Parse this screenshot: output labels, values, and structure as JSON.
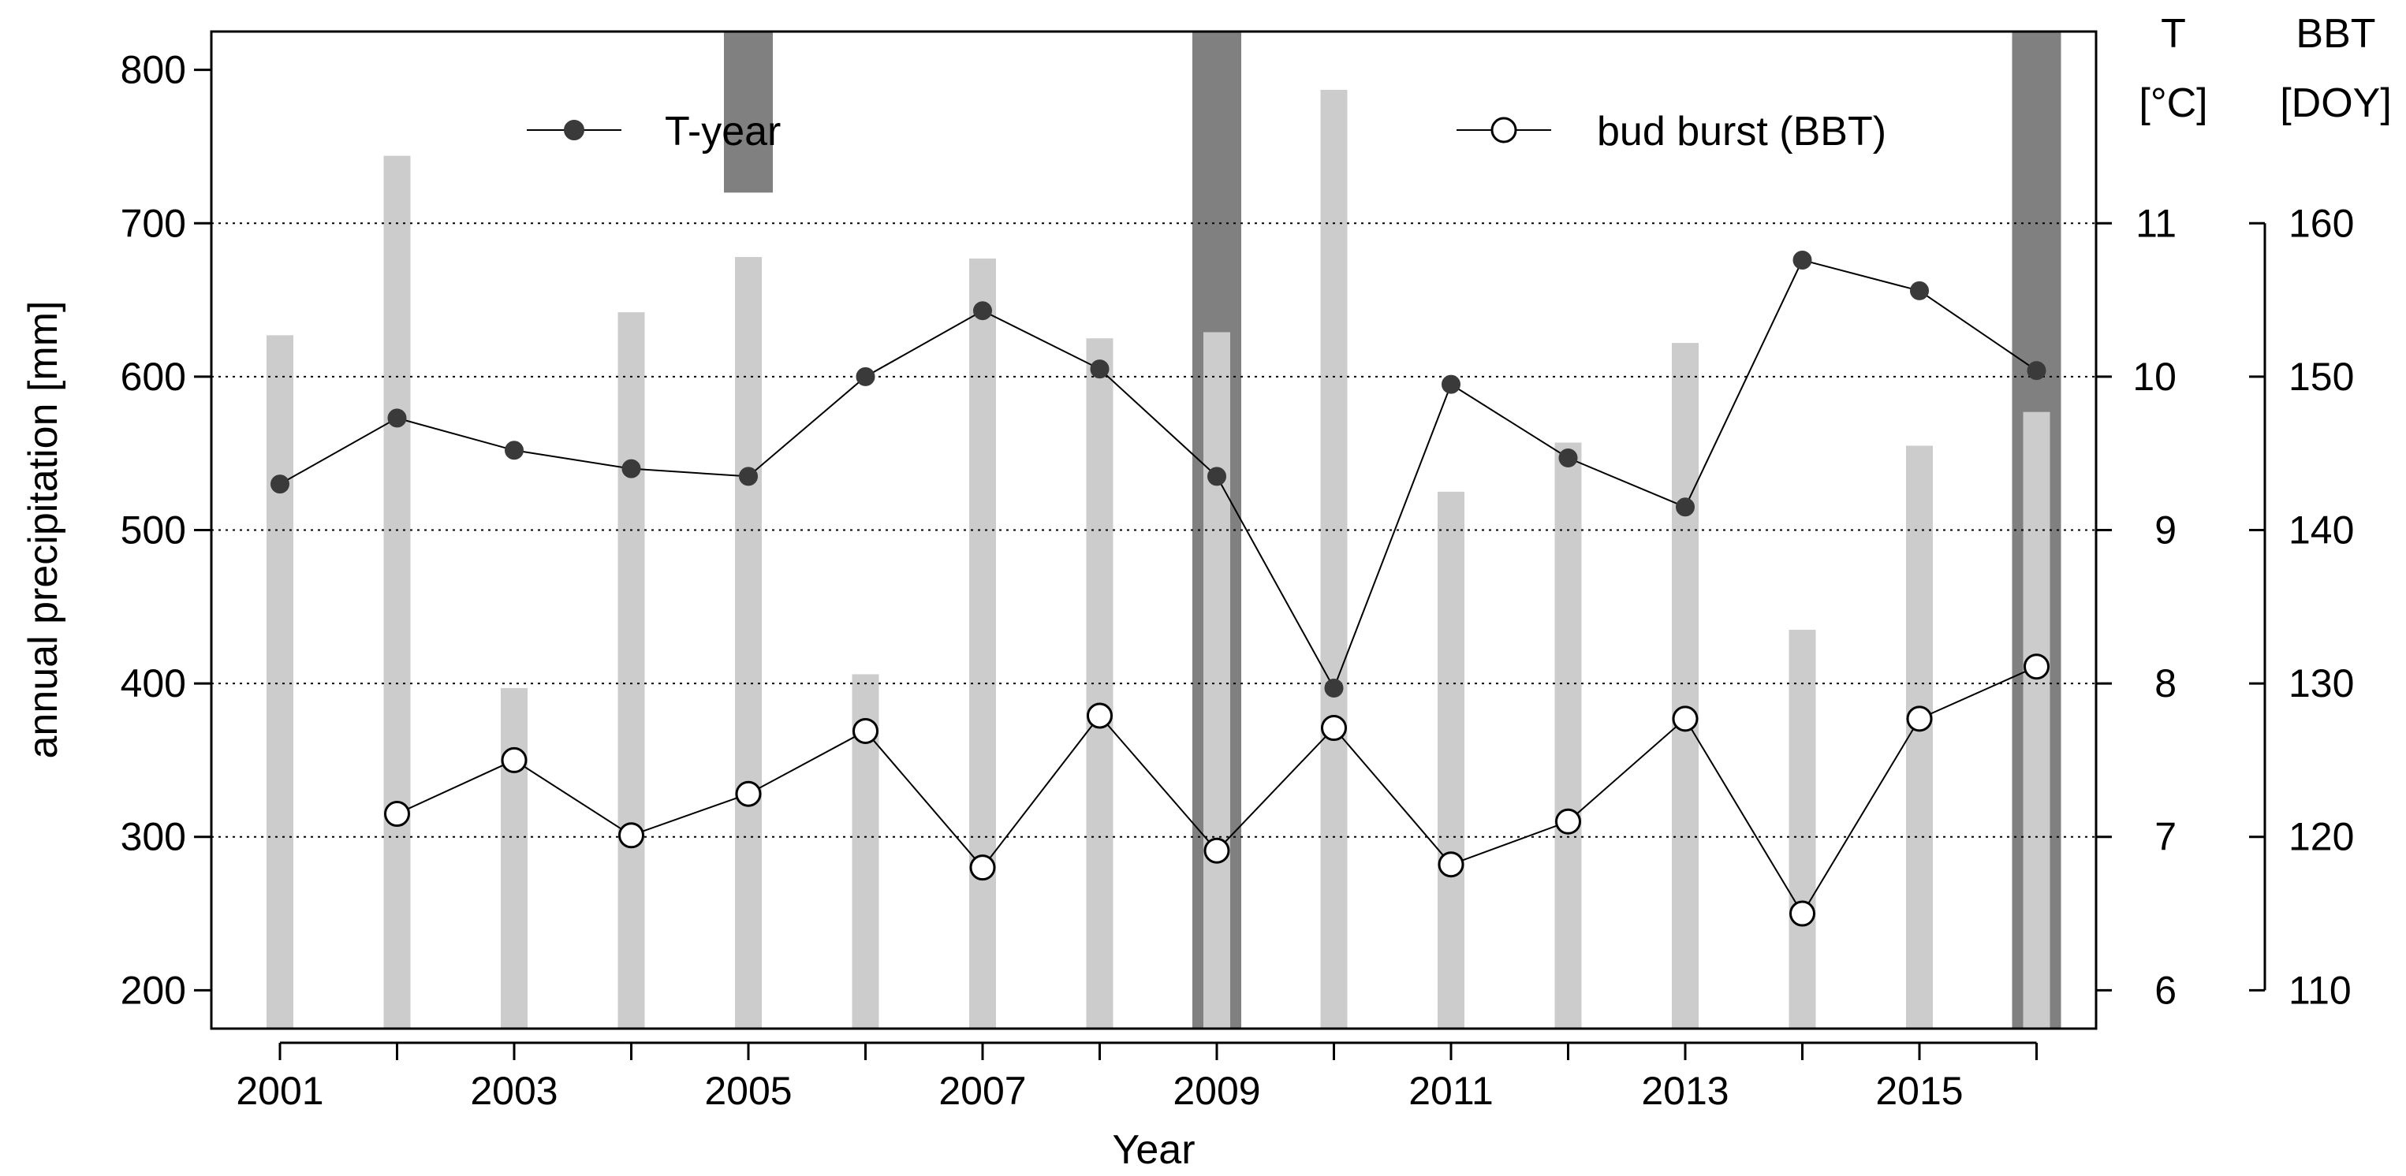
{
  "chart_data": {
    "type": "bar",
    "x_label": "Year",
    "x_tick_labels": [
      "2001",
      "2003",
      "2005",
      "2007",
      "2009",
      "2011",
      "2013",
      "2015"
    ],
    "years": [
      2001,
      2002,
      2003,
      2004,
      2005,
      2006,
      2007,
      2008,
      2009,
      2010,
      2011,
      2012,
      2013,
      2014,
      2015,
      2016
    ],
    "left_axis": {
      "label": "annual precipitation [mm]",
      "ylim": [
        175,
        825
      ],
      "ticks": [
        200,
        300,
        400,
        500,
        600,
        700,
        800
      ]
    },
    "right_axis_T": {
      "label_line1": "T",
      "label_line2": "[°C]",
      "ylim": [
        5.75,
        12.25
      ],
      "ticks": [
        6,
        7,
        8,
        9,
        10,
        11
      ]
    },
    "right_axis_BBT": {
      "label_line1": "BBT",
      "label_line2": "[DOY]",
      "ylim": [
        107.5,
        172.5
      ],
      "ticks": [
        110,
        120,
        130,
        140,
        150,
        160
      ]
    },
    "gridlines": [
      300,
      400,
      500,
      600,
      700
    ],
    "grid": "horizontal dotted",
    "legend_placement": "top",
    "series": [
      {
        "name": "precipitation",
        "kind": "bar",
        "axis": "left",
        "color": "#cccccc",
        "values": [
          627,
          744,
          397,
          642,
          678,
          406,
          677,
          625,
          629,
          787,
          525,
          557,
          622,
          435,
          555,
          577
        ]
      },
      {
        "name": "T-year",
        "kind": "line",
        "axis": "right_T",
        "marker": "filled-circle",
        "color": "#3a3a3a",
        "values": [
          9.3,
          9.73,
          9.52,
          9.4,
          9.35,
          10.0,
          10.43,
          10.05,
          9.35,
          7.97,
          9.95,
          9.47,
          9.15,
          10.76,
          10.56,
          10.04
        ]
      },
      {
        "name": "bud burst (BBT)",
        "kind": "line",
        "axis": "right_BBT",
        "marker": "open-circle",
        "color": "#000000",
        "values": [
          null,
          121.5,
          125.0,
          120.1,
          122.8,
          126.9,
          118.0,
          127.9,
          119.1,
          127.1,
          118.2,
          121.0,
          127.7,
          115.0,
          127.7,
          131.1
        ]
      }
    ],
    "highlight_bands": {
      "color": "#808080",
      "bands": [
        {
          "year": 2005,
          "segments": [
            [
              720,
              null
            ],
            [
              800,
              825
            ]
          ]
        },
        {
          "year": 2009,
          "segments": [
            [
              170,
              825
            ]
          ]
        },
        {
          "year": 2016,
          "segments": [
            [
              170,
              825
            ]
          ]
        }
      ]
    },
    "legend": [
      {
        "label": "T-year",
        "marker": "filled-circle"
      },
      {
        "label": "bud burst (BBT)",
        "marker": "open-circle"
      }
    ]
  }
}
